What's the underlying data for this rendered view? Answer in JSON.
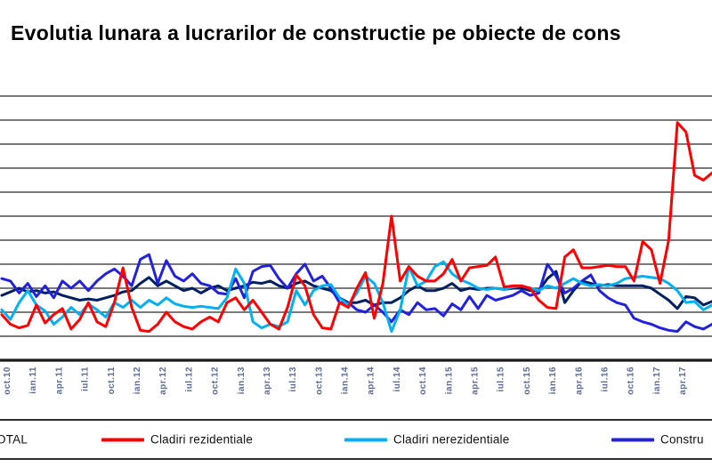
{
  "title": "Evolutia lunara a lucrarilor de constructie pe obiecte de cons",
  "colors": {
    "total": "#002060",
    "rezidentiale": "#ff0000",
    "nerezidentiale": "#00b0f0",
    "ingineresti": "#2222dd",
    "gridline": "#4d4d4d",
    "axis": "#1a1a1a",
    "tick_label": "#5b6c94",
    "background": "#ffffff"
  },
  "legend": {
    "items": [
      {
        "label": "OTAL"
      },
      {
        "label": "Cladiri rezidentiale"
      },
      {
        "label": "Cladiri nerezidentiale"
      },
      {
        "label": "Constru"
      }
    ]
  },
  "chart_data": {
    "type": "line",
    "title": "Evolutia lunara a lucrarilor de constructie pe obiecte de cons",
    "legend_position": "bottom",
    "points_per_series": 83,
    "x_tick_every_n_points": 3,
    "x_tick_label_rotation": -90,
    "x_tick_labels": [
      "oct.10",
      "ian.11",
      "apr.11",
      "iul.11",
      "oct.11",
      "ian.12",
      "apr.12",
      "iul.12",
      "oct.12",
      "ian.13",
      "apr.13",
      "iul.13",
      "oct.13",
      "ian.14",
      "apr.14",
      "iul.14",
      "oct.14",
      "ian.15",
      "apr.15",
      "iul.15",
      "oct.15",
      "ian.16",
      "apr.16",
      "iul.16",
      "oct.16",
      "ian.17",
      "apr.17"
    ],
    "y_axis": {
      "labels_visible": false,
      "ylim": [
        0,
        11
      ],
      "gridline_count": 11,
      "unit": "gridline intervals above baseline (y-axis labels cropped out of frame)"
    },
    "series": [
      {
        "name": "OTAL",
        "color": "#002060",
        "values": [
          2.7,
          2.85,
          3.0,
          2.85,
          2.9,
          2.8,
          2.85,
          2.7,
          2.6,
          2.5,
          2.55,
          2.5,
          2.6,
          2.7,
          2.85,
          2.9,
          3.2,
          3.45,
          3.1,
          3.3,
          3.1,
          2.9,
          3.0,
          2.8,
          3.0,
          3.1,
          2.9,
          3.0,
          3.1,
          3.25,
          3.2,
          3.3,
          3.1,
          3.0,
          3.2,
          3.3,
          3.1,
          3.0,
          2.9,
          2.6,
          2.4,
          2.4,
          2.5,
          2.3,
          2.4,
          2.4,
          2.6,
          2.9,
          3.1,
          2.9,
          2.9,
          3.0,
          3.2,
          2.9,
          3.0,
          2.95,
          3.0,
          3.0,
          2.95,
          3.0,
          3.0,
          2.9,
          2.9,
          3.4,
          3.7,
          2.4,
          2.9,
          3.3,
          3.2,
          3.1,
          3.15,
          3.1,
          3.1,
          3.1,
          3.1,
          3.0,
          2.75,
          2.5,
          2.15,
          2.65,
          2.6,
          2.3,
          2.45
        ]
      },
      {
        "name": "Cladiri rezidentiale",
        "color": "#ff0000",
        "values": [
          1.9,
          1.5,
          1.35,
          1.45,
          2.3,
          1.55,
          1.9,
          2.15,
          1.3,
          1.7,
          2.4,
          1.6,
          1.4,
          2.4,
          3.85,
          2.2,
          1.25,
          1.2,
          1.5,
          2.0,
          1.6,
          1.4,
          1.3,
          1.6,
          1.8,
          1.6,
          2.4,
          2.6,
          2.1,
          2.5,
          2.0,
          1.5,
          1.3,
          2.2,
          3.55,
          3.1,
          1.9,
          1.35,
          1.3,
          2.4,
          2.2,
          3.0,
          3.65,
          1.75,
          3.2,
          6.0,
          3.3,
          3.9,
          3.5,
          3.3,
          3.3,
          3.6,
          4.2,
          3.3,
          3.85,
          3.9,
          3.95,
          4.3,
          3.05,
          3.1,
          3.1,
          3.0,
          2.5,
          2.2,
          2.15,
          4.3,
          4.6,
          3.85,
          3.85,
          3.9,
          3.95,
          3.9,
          3.9,
          3.3,
          4.95,
          4.6,
          3.2,
          5.0,
          9.9,
          9.5,
          7.7,
          7.5,
          7.8
        ]
      },
      {
        "name": "Cladiri nerezidentiale",
        "color": "#00b0f0",
        "values": [
          2.1,
          1.7,
          2.4,
          2.9,
          2.3,
          2.05,
          1.5,
          1.8,
          2.2,
          1.9,
          2.35,
          2.1,
          1.8,
          2.4,
          2.2,
          2.5,
          2.2,
          2.5,
          2.3,
          2.6,
          2.35,
          2.25,
          2.2,
          2.25,
          2.2,
          2.15,
          2.6,
          3.8,
          3.2,
          1.6,
          1.35,
          1.5,
          1.4,
          1.6,
          2.9,
          2.3,
          2.9,
          3.1,
          3.15,
          2.6,
          2.3,
          2.8,
          3.5,
          3.2,
          2.4,
          1.2,
          2.1,
          3.9,
          3.1,
          3.3,
          3.9,
          4.1,
          3.6,
          3.35,
          3.2,
          3.0,
          2.95,
          3.0,
          2.95,
          3.05,
          3.1,
          3.0,
          2.9,
          3.1,
          3.0,
          3.2,
          3.4,
          3.2,
          3.1,
          3.15,
          3.1,
          3.2,
          3.4,
          3.45,
          3.5,
          3.45,
          3.4,
          3.2,
          2.9,
          2.4,
          2.45,
          2.1,
          2.3
        ]
      },
      {
        "name": "Constru",
        "color": "#2222dd",
        "values": [
          3.4,
          3.3,
          2.8,
          3.2,
          2.65,
          3.1,
          2.6,
          3.3,
          3.0,
          3.3,
          2.9,
          3.3,
          3.6,
          3.8,
          3.5,
          3.1,
          4.2,
          4.4,
          3.2,
          4.15,
          3.5,
          3.3,
          3.6,
          3.2,
          3.1,
          2.8,
          2.75,
          3.4,
          2.6,
          3.7,
          3.9,
          3.95,
          3.4,
          3.0,
          3.6,
          4.0,
          3.3,
          3.5,
          3.0,
          2.4,
          2.4,
          2.1,
          2.0,
          2.3,
          2.0,
          1.6,
          2.1,
          1.9,
          2.4,
          2.1,
          2.15,
          1.85,
          2.35,
          2.1,
          2.65,
          2.15,
          2.7,
          2.5,
          2.6,
          2.7,
          2.9,
          2.7,
          2.8,
          4.0,
          3.5,
          2.8,
          3.0,
          3.3,
          3.55,
          2.9,
          2.6,
          2.4,
          2.3,
          1.75,
          1.6,
          1.5,
          1.35,
          1.25,
          1.2,
          1.6,
          1.4,
          1.3,
          1.5
        ]
      }
    ]
  }
}
